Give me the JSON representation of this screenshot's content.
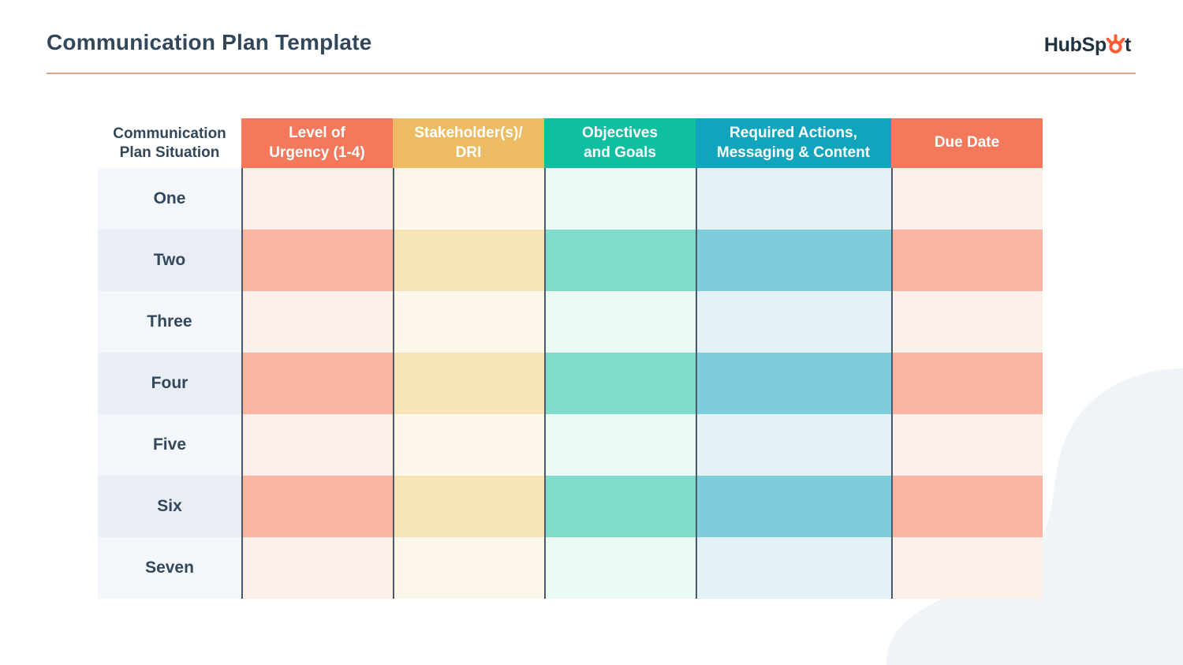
{
  "header": {
    "title": "Communication Plan Template",
    "divider_color": "#E2A28A",
    "logo": {
      "prefix": "HubSp",
      "suffix": "t",
      "sprocket_color": "#FF5C35",
      "text_color": "#213343"
    }
  },
  "table": {
    "corner_header": "Communication\nPlan Situation",
    "columns": [
      {
        "id": "urgency",
        "label": "Level of\nUrgency (1-4)",
        "header_bg": "#F4795C",
        "row_light": "#FDF0EB",
        "row_dark": "#FAB5A2"
      },
      {
        "id": "stakeholder",
        "label": "Stakeholder(s)/\nDRI",
        "header_bg": "#EDBC62",
        "row_light": "#FDF6EA",
        "row_dark": "#F7E4B4"
      },
      {
        "id": "objectives",
        "label": "Objectives\nand Goals",
        "header_bg": "#10BFA1",
        "row_light": "#EAFBF6",
        "row_dark": "#80DCC8"
      },
      {
        "id": "actions",
        "label": "Required Actions,\nMessaging & Content",
        "header_bg": "#11A5BD",
        "row_light": "#E3F1F7",
        "row_dark": "#7FCCDC"
      },
      {
        "id": "due-date",
        "label": "Due Date",
        "header_bg": "#F4795C",
        "row_light": "#FDF0EB",
        "row_dark": "#FAB5A2"
      }
    ],
    "rows": [
      "One",
      "Two",
      "Three",
      "Four",
      "Five",
      "Six",
      "Seven"
    ],
    "row_label_light": "#F3F6FA",
    "row_label_dark": "#E9EDF4",
    "grid_line_color": "#4A5A6A"
  },
  "decor": {
    "blob_color": "#F0F4F8"
  }
}
